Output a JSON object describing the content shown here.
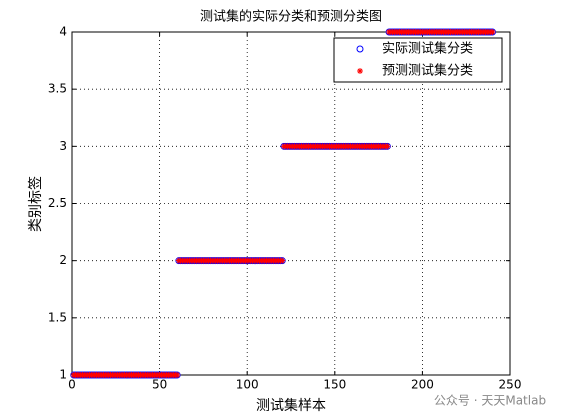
{
  "chart_data": {
    "type": "scatter",
    "title": "测试集的实际分类和预测分类图",
    "xlabel": "测试集样本",
    "ylabel": "类别标签",
    "x": [
      1,
      2,
      3,
      4,
      5,
      6,
      7,
      8,
      9,
      10,
      11,
      12,
      13,
      14,
      15,
      16,
      17,
      18,
      19,
      20,
      21,
      22,
      23,
      24,
      25,
      26,
      27,
      28,
      29,
      30,
      31,
      32,
      33,
      34,
      35,
      36,
      37,
      38,
      39,
      40,
      41,
      42,
      43,
      44,
      45,
      46,
      47,
      48,
      49,
      50,
      51,
      52,
      53,
      54,
      55,
      56,
      57,
      58,
      59,
      60,
      61,
      62,
      63,
      64,
      65,
      66,
      67,
      68,
      69,
      70,
      71,
      72,
      73,
      74,
      75,
      76,
      77,
      78,
      79,
      80,
      81,
      82,
      83,
      84,
      85,
      86,
      87,
      88,
      89,
      90,
      91,
      92,
      93,
      94,
      95,
      96,
      97,
      98,
      99,
      100,
      101,
      102,
      103,
      104,
      105,
      106,
      107,
      108,
      109,
      110,
      111,
      112,
      113,
      114,
      115,
      116,
      117,
      118,
      119,
      120,
      121,
      122,
      123,
      124,
      125,
      126,
      127,
      128,
      129,
      130,
      131,
      132,
      133,
      134,
      135,
      136,
      137,
      138,
      139,
      140,
      141,
      142,
      143,
      144,
      145,
      146,
      147,
      148,
      149,
      150,
      151,
      152,
      153,
      154,
      155,
      156,
      157,
      158,
      159,
      160,
      161,
      162,
      163,
      164,
      165,
      166,
      167,
      168,
      169,
      170,
      171,
      172,
      173,
      174,
      175,
      176,
      177,
      178,
      179,
      180,
      181,
      182,
      183,
      184,
      185,
      186,
      187,
      188,
      189,
      190,
      191,
      192,
      193,
      194,
      195,
      196,
      197,
      198,
      199,
      200,
      201,
      202,
      203,
      204,
      205,
      206,
      207,
      208,
      209,
      210,
      211,
      212,
      213,
      214,
      215,
      216,
      217,
      218,
      219,
      220,
      221,
      222,
      223,
      224,
      225,
      226,
      227,
      228,
      229,
      230,
      231,
      232,
      233,
      234,
      235,
      236,
      237,
      238,
      239,
      240
    ],
    "series": [
      {
        "name": "实际测试集分类",
        "color": "#0000ff",
        "marker": "circle",
        "values": [
          1,
          1,
          1,
          1,
          1,
          1,
          1,
          1,
          1,
          1,
          1,
          1,
          1,
          1,
          1,
          1,
          1,
          1,
          1,
          1,
          1,
          1,
          1,
          1,
          1,
          1,
          1,
          1,
          1,
          1,
          1,
          1,
          1,
          1,
          1,
          1,
          1,
          1,
          1,
          1,
          1,
          1,
          1,
          1,
          1,
          1,
          1,
          1,
          1,
          1,
          1,
          1,
          1,
          1,
          1,
          1,
          1,
          1,
          1,
          1,
          2,
          2,
          2,
          2,
          2,
          2,
          2,
          2,
          2,
          2,
          2,
          2,
          2,
          2,
          2,
          2,
          2,
          2,
          2,
          2,
          2,
          2,
          2,
          2,
          2,
          2,
          2,
          2,
          2,
          2,
          2,
          2,
          2,
          2,
          2,
          2,
          2,
          2,
          2,
          2,
          2,
          2,
          2,
          2,
          2,
          2,
          2,
          2,
          2,
          2,
          2,
          2,
          2,
          2,
          2,
          2,
          2,
          2,
          2,
          2,
          3,
          3,
          3,
          3,
          3,
          3,
          3,
          3,
          3,
          3,
          3,
          3,
          3,
          3,
          3,
          3,
          3,
          3,
          3,
          3,
          3,
          3,
          3,
          3,
          3,
          3,
          3,
          3,
          3,
          3,
          3,
          3,
          3,
          3,
          3,
          3,
          3,
          3,
          3,
          3,
          3,
          3,
          3,
          3,
          3,
          3,
          3,
          3,
          3,
          3,
          3,
          3,
          3,
          3,
          3,
          3,
          3,
          3,
          3,
          3,
          4,
          4,
          4,
          4,
          4,
          4,
          4,
          4,
          4,
          4,
          4,
          4,
          4,
          4,
          4,
          4,
          4,
          4,
          4,
          4,
          4,
          4,
          4,
          4,
          4,
          4,
          4,
          4,
          4,
          4,
          4,
          4,
          4,
          4,
          4,
          4,
          4,
          4,
          4,
          4,
          4,
          4,
          4,
          4,
          4,
          4,
          4,
          4,
          4,
          4,
          4,
          4,
          4,
          4,
          4,
          4,
          4,
          4,
          4,
          4
        ]
      },
      {
        "name": "预测测试集分类",
        "color": "#ff0000",
        "marker": "star",
        "values": [
          1,
          1,
          1,
          1,
          1,
          1,
          1,
          1,
          1,
          1,
          1,
          1,
          1,
          1,
          1,
          1,
          1,
          1,
          1,
          1,
          1,
          1,
          1,
          1,
          1,
          1,
          1,
          1,
          1,
          1,
          1,
          1,
          1,
          1,
          1,
          1,
          1,
          1,
          1,
          1,
          1,
          1,
          1,
          1,
          1,
          1,
          1,
          1,
          1,
          1,
          1,
          1,
          1,
          1,
          1,
          1,
          1,
          1,
          1,
          1,
          2,
          2,
          2,
          2,
          2,
          2,
          2,
          2,
          2,
          2,
          2,
          2,
          2,
          2,
          2,
          2,
          2,
          2,
          2,
          2,
          2,
          2,
          2,
          2,
          2,
          2,
          2,
          2,
          2,
          2,
          2,
          2,
          2,
          2,
          2,
          2,
          2,
          2,
          2,
          2,
          2,
          2,
          2,
          2,
          2,
          2,
          2,
          2,
          2,
          2,
          2,
          2,
          2,
          2,
          2,
          2,
          2,
          2,
          2,
          2,
          3,
          3,
          3,
          3,
          3,
          3,
          3,
          3,
          3,
          3,
          3,
          3,
          3,
          3,
          3,
          3,
          3,
          3,
          3,
          3,
          3,
          3,
          3,
          3,
          3,
          3,
          3,
          3,
          3,
          3,
          3,
          3,
          3,
          3,
          3,
          3,
          3,
          3,
          3,
          3,
          3,
          3,
          3,
          3,
          3,
          3,
          3,
          3,
          3,
          3,
          3,
          3,
          3,
          3,
          3,
          3,
          3,
          3,
          3,
          3,
          4,
          4,
          4,
          4,
          4,
          4,
          4,
          4,
          4,
          4,
          4,
          4,
          4,
          4,
          4,
          4,
          4,
          4,
          4,
          4,
          4,
          4,
          4,
          4,
          4,
          4,
          4,
          4,
          4,
          4,
          4,
          4,
          4,
          4,
          4,
          4,
          4,
          4,
          4,
          4,
          4,
          4,
          4,
          4,
          4,
          4,
          4,
          4,
          4,
          4,
          4,
          4,
          4,
          4,
          4,
          4,
          4,
          4,
          4,
          4
        ]
      }
    ],
    "xlim": [
      0,
      250
    ],
    "xticks": [
      0,
      50,
      100,
      150,
      200,
      250
    ],
    "ylim": [
      1,
      4
    ],
    "yticks": [
      1,
      1.5,
      2,
      2.5,
      3,
      3.5,
      4
    ],
    "grid": true,
    "legend": "upper right"
  },
  "watermark": "公众号 · 天天Matlab"
}
